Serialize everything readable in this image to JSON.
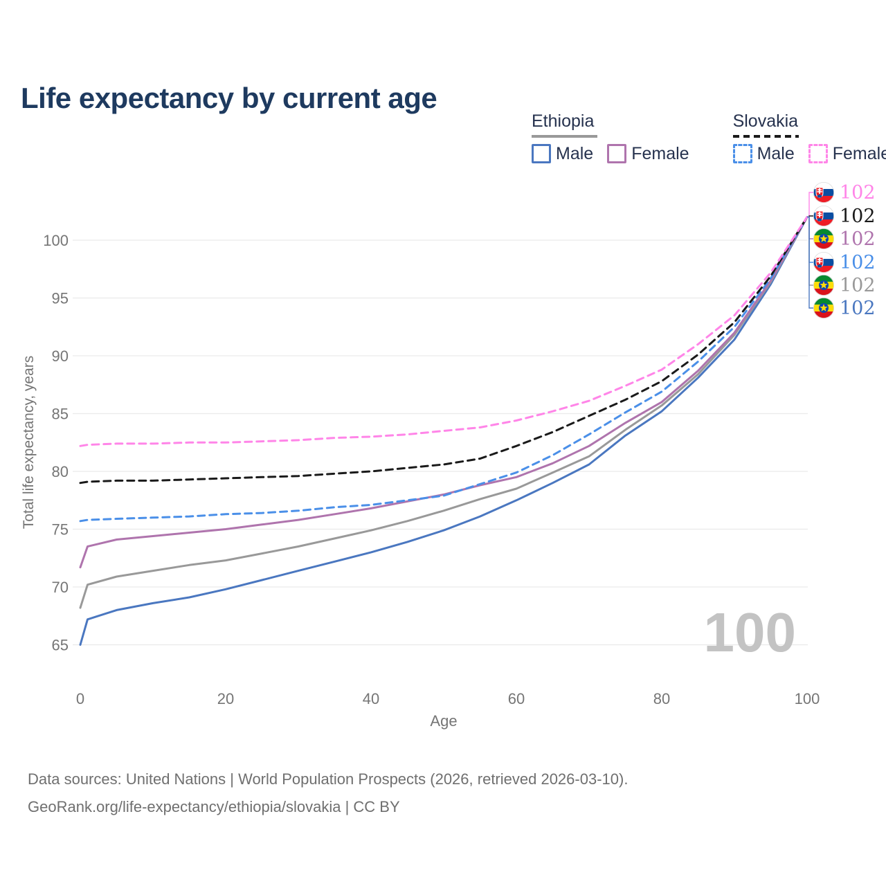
{
  "page": {
    "title": "Life expectancy by current age",
    "source_line1": "Data sources: United Nations | World Population Prospects (2026, retrieved 2026-03-10).",
    "source_line2": "GeoRank.org/life-expectancy/ethiopia/slovakia | CC BY"
  },
  "legend": {
    "groups": [
      {
        "name": "Ethiopia",
        "underline_style": "solid",
        "underline_color": "#999999",
        "items": [
          {
            "label": "Male",
            "color": "#4A77C0",
            "dashed": false
          },
          {
            "label": "Female",
            "color": "#AF74AD",
            "dashed": false
          }
        ]
      },
      {
        "name": "Slovakia",
        "underline_style": "dashed",
        "underline_color": "#1A1A1A",
        "items": [
          {
            "label": "Male",
            "color": "#4A8FE8",
            "dashed": true
          },
          {
            "label": "Female",
            "color": "#FF85E8",
            "dashed": true
          }
        ]
      }
    ]
  },
  "chart_data": {
    "type": "line",
    "title": "Life expectancy by current age",
    "xlabel": "Age",
    "ylabel": "Total life expectancy, years",
    "xlim": [
      0,
      100
    ],
    "ylim": [
      63,
      104
    ],
    "x_ticks": [
      0,
      20,
      40,
      60,
      80,
      100
    ],
    "y_ticks": [
      65,
      70,
      75,
      80,
      85,
      90,
      95,
      100
    ],
    "grid": "horizontal-only",
    "grid_color": "#EAEAEA",
    "axis_text_color": "#757575",
    "watermark_age": "100",
    "watermark_color": "#C3C3C3",
    "ages": [
      0,
      1,
      5,
      10,
      15,
      20,
      25,
      30,
      35,
      40,
      45,
      50,
      55,
      60,
      65,
      70,
      75,
      80,
      85,
      90,
      95,
      100
    ],
    "series": [
      {
        "name": "Slovakia Female",
        "country": "Slovakia",
        "sex": "Female",
        "color": "#FF85E8",
        "dashed": true,
        "z": 6,
        "flag": "sk",
        "end_label": "102",
        "values": [
          82.2,
          82.3,
          82.4,
          82.4,
          82.5,
          82.5,
          82.6,
          82.7,
          82.9,
          83.0,
          83.2,
          83.5,
          83.8,
          84.4,
          85.2,
          86.1,
          87.4,
          88.8,
          91.0,
          93.5,
          97.2,
          102
        ]
      },
      {
        "name": "Slovakia",
        "country": "Slovakia",
        "sex": "Both",
        "color": "#1A1A1A",
        "dashed": true,
        "z": 5,
        "flag": "sk",
        "end_label": "102",
        "values": [
          79.0,
          79.1,
          79.2,
          79.2,
          79.3,
          79.4,
          79.5,
          79.6,
          79.8,
          80.0,
          80.3,
          80.6,
          81.1,
          82.2,
          83.4,
          84.8,
          86.2,
          87.8,
          90.1,
          92.9,
          96.9,
          102
        ]
      },
      {
        "name": "Ethiopia Female",
        "country": "Ethiopia",
        "sex": "Female",
        "color": "#AF74AD",
        "dashed": false,
        "z": 3,
        "flag": "et",
        "end_label": "102",
        "values": [
          71.7,
          73.5,
          74.1,
          74.4,
          74.7,
          75.0,
          75.4,
          75.8,
          76.3,
          76.8,
          77.4,
          78.0,
          78.8,
          79.5,
          80.7,
          82.2,
          84.2,
          86.0,
          88.7,
          92.0,
          96.5,
          102
        ]
      },
      {
        "name": "Slovakia Male",
        "country": "Slovakia",
        "sex": "Male",
        "color": "#4A8FE8",
        "dashed": true,
        "z": 4,
        "flag": "sk",
        "end_label": "102",
        "values": [
          75.7,
          75.8,
          75.9,
          76.0,
          76.1,
          76.3,
          76.4,
          76.6,
          76.9,
          77.1,
          77.5,
          77.9,
          78.9,
          79.9,
          81.4,
          83.2,
          85.1,
          86.9,
          89.5,
          92.5,
          96.7,
          102
        ]
      },
      {
        "name": "Ethiopia",
        "country": "Ethiopia",
        "sex": "Both",
        "color": "#999999",
        "dashed": false,
        "z": 2,
        "flag": "et",
        "end_label": "102",
        "values": [
          68.2,
          70.2,
          70.9,
          71.4,
          71.9,
          72.3,
          72.9,
          73.5,
          74.2,
          74.9,
          75.7,
          76.6,
          77.6,
          78.5,
          79.9,
          81.3,
          83.6,
          85.7,
          88.4,
          91.8,
          96.4,
          102
        ]
      },
      {
        "name": "Ethiopia Male",
        "country": "Ethiopia",
        "sex": "Male",
        "color": "#4A77C0",
        "dashed": false,
        "z": 1,
        "flag": "et",
        "end_label": "102",
        "values": [
          65.0,
          67.2,
          68.0,
          68.6,
          69.1,
          69.8,
          70.6,
          71.4,
          72.2,
          73.0,
          73.9,
          74.9,
          76.1,
          77.5,
          79.0,
          80.6,
          83.1,
          85.2,
          88.1,
          91.4,
          96.2,
          102
        ]
      }
    ],
    "flag_colors": {
      "sk": {
        "white": "#FFFFFF",
        "blue": "#0B4EA2",
        "red": "#EE1C25"
      },
      "et": {
        "green": "#078930",
        "yellow": "#FCDD09",
        "red": "#DA121A",
        "disc": "#0F47AF",
        "star": "#FCDD09"
      }
    }
  }
}
